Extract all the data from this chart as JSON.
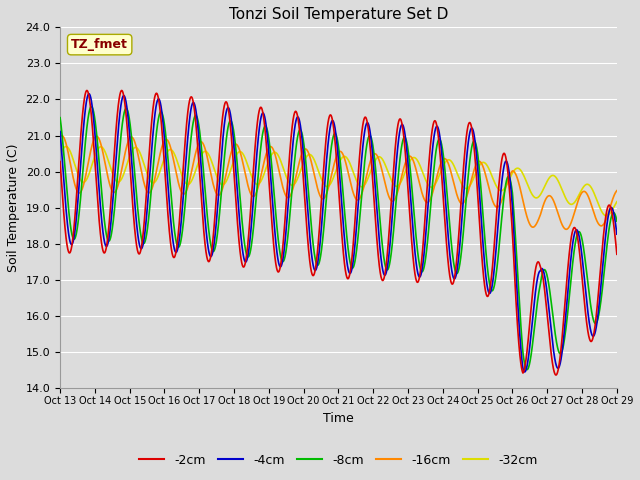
{
  "title": "Tonzi Soil Temperature Set D",
  "xlabel": "Time",
  "ylabel": "Soil Temperature (C)",
  "ylim": [
    14.0,
    24.0
  ],
  "yticks": [
    14.0,
    15.0,
    16.0,
    17.0,
    18.0,
    19.0,
    20.0,
    21.0,
    22.0,
    23.0,
    24.0
  ],
  "series": {
    "-2cm": {
      "color": "#DD0000",
      "lw": 1.2
    },
    "-4cm": {
      "color": "#0000CC",
      "lw": 1.2
    },
    "-8cm": {
      "color": "#00BB00",
      "lw": 1.2
    },
    "-16cm": {
      "color": "#FF8800",
      "lw": 1.2
    },
    "-32cm": {
      "color": "#DDDD00",
      "lw": 1.2
    }
  },
  "annotation_text": "TZ_fmet",
  "annotation_color": "#880000",
  "annotation_bg": "#FFFFCC",
  "bg_color": "#DCDCDC",
  "grid_color": "#FFFFFF",
  "start_day": 13.0,
  "end_day": 29.0,
  "figsize": [
    6.4,
    4.8
  ],
  "dpi": 100
}
